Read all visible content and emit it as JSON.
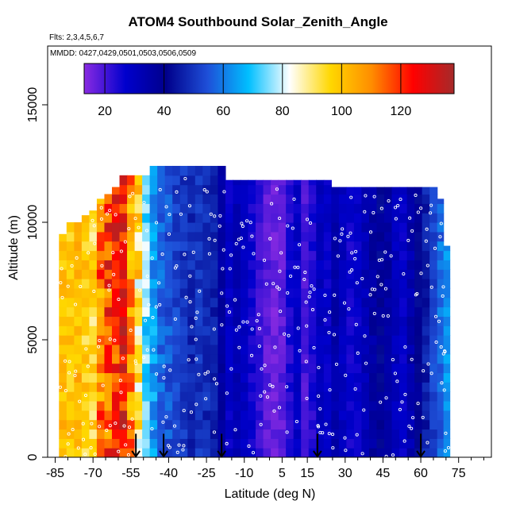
{
  "chart_data": {
    "type": "heatmap",
    "title": "ATOM4 Southbound Solar_Zenith_Angle",
    "flights_label": "Flts: 2,3,4,5,6,7",
    "dates_label": "MMDD: 0427,0429,0501,0503,0506,0509",
    "xlabel": "Latitude (deg N)",
    "ylabel": "Altitude (m)",
    "xlim": [
      -88,
      88
    ],
    "ylim": [
      0,
      17500
    ],
    "x_ticks": [
      -85,
      -70,
      -55,
      -40,
      -25,
      -10,
      5,
      15,
      30,
      45,
      60,
      75
    ],
    "x_tick_labels": [
      "-85",
      "-70",
      "-55",
      "-40",
      "-25",
      "-10",
      "5",
      "15",
      "30",
      "45",
      "60",
      "75"
    ],
    "y_ticks": [
      0,
      5000,
      10000,
      15000
    ],
    "y_tick_labels": [
      "0",
      "5000",
      "10000",
      "15000"
    ],
    "colorbar": {
      "range": [
        13,
        138
      ],
      "ticks": [
        20,
        40,
        60,
        80,
        100,
        120
      ],
      "tick_labels": [
        "20",
        "40",
        "60",
        "80",
        "100",
        "120"
      ]
    },
    "columns": [
      {
        "lat": -82,
        "top": 9500,
        "value": 100,
        "jitter": 6
      },
      {
        "lat": -79,
        "top": 10000,
        "value": 98,
        "jitter": 6
      },
      {
        "lat": -76,
        "top": 10000,
        "value": 102,
        "jitter": 6
      },
      {
        "lat": -73,
        "top": 10300,
        "value": 97,
        "jitter": 7
      },
      {
        "lat": -70,
        "top": 10500,
        "value": 95,
        "jitter": 8
      },
      {
        "lat": -67,
        "top": 11000,
        "value": 110,
        "jitter": 16
      },
      {
        "lat": -64,
        "top": 11200,
        "value": 118,
        "jitter": 16
      },
      {
        "lat": -61,
        "top": 11500,
        "value": 122,
        "jitter": 14
      },
      {
        "lat": -58,
        "top": 12000,
        "value": 125,
        "jitter": 12
      },
      {
        "lat": -55,
        "top": 12000,
        "value": 108,
        "jitter": 14
      },
      {
        "lat": -52,
        "top": 12000,
        "value": 92,
        "jitter": 14
      },
      {
        "lat": -49,
        "top": 12000,
        "value": 74,
        "jitter": 8
      },
      {
        "lat": -46,
        "top": 12400,
        "value": 64,
        "jitter": 6
      },
      {
        "lat": -43,
        "top": 12400,
        "value": 58,
        "jitter": 5
      },
      {
        "lat": -40,
        "top": 12400,
        "value": 55,
        "jitter": 5
      },
      {
        "lat": -37,
        "top": 12400,
        "value": 52,
        "jitter": 4
      },
      {
        "lat": -34,
        "top": 12400,
        "value": 50,
        "jitter": 4
      },
      {
        "lat": -31,
        "top": 12400,
        "value": 48,
        "jitter": 4
      },
      {
        "lat": -28,
        "top": 12400,
        "value": 50,
        "jitter": 4
      },
      {
        "lat": -25,
        "top": 12400,
        "value": 48,
        "jitter": 4
      },
      {
        "lat": -22,
        "top": 12400,
        "value": 46,
        "jitter": 3
      },
      {
        "lat": -19,
        "top": 12400,
        "value": 36,
        "jitter": 3
      },
      {
        "lat": -16,
        "top": 11800,
        "value": 28,
        "jitter": 3
      },
      {
        "lat": -13,
        "top": 11800,
        "value": 32,
        "jitter": 3
      },
      {
        "lat": -10,
        "top": 11800,
        "value": 30,
        "jitter": 3
      },
      {
        "lat": -7,
        "top": 11800,
        "value": 26,
        "jitter": 3
      },
      {
        "lat": -4,
        "top": 11800,
        "value": 22,
        "jitter": 3
      },
      {
        "lat": -1,
        "top": 11800,
        "value": 18,
        "jitter": 3
      },
      {
        "lat": 2,
        "top": 11800,
        "value": 16,
        "jitter": 3
      },
      {
        "lat": 5,
        "top": 11800,
        "value": 18,
        "jitter": 3
      },
      {
        "lat": 8,
        "top": 11800,
        "value": 24,
        "jitter": 3
      },
      {
        "lat": 11,
        "top": 11800,
        "value": 28,
        "jitter": 3
      },
      {
        "lat": 14,
        "top": 11800,
        "value": 20,
        "jitter": 3
      },
      {
        "lat": 17,
        "top": 11800,
        "value": 24,
        "jitter": 3
      },
      {
        "lat": 20,
        "top": 11800,
        "value": 30,
        "jitter": 3
      },
      {
        "lat": 23,
        "top": 11800,
        "value": 28,
        "jitter": 3
      },
      {
        "lat": 26,
        "top": 11500,
        "value": 34,
        "jitter": 3
      },
      {
        "lat": 29,
        "top": 11500,
        "value": 30,
        "jitter": 3
      },
      {
        "lat": 32,
        "top": 11500,
        "value": 26,
        "jitter": 3
      },
      {
        "lat": 35,
        "top": 11500,
        "value": 28,
        "jitter": 3
      },
      {
        "lat": 38,
        "top": 11500,
        "value": 32,
        "jitter": 3
      },
      {
        "lat": 41,
        "top": 11500,
        "value": 36,
        "jitter": 4
      },
      {
        "lat": 44,
        "top": 11500,
        "value": 40,
        "jitter": 4
      },
      {
        "lat": 47,
        "top": 11500,
        "value": 36,
        "jitter": 3
      },
      {
        "lat": 50,
        "top": 11500,
        "value": 30,
        "jitter": 3
      },
      {
        "lat": 53,
        "top": 11500,
        "value": 28,
        "jitter": 3
      },
      {
        "lat": 56,
        "top": 11500,
        "value": 34,
        "jitter": 4
      },
      {
        "lat": 59,
        "top": 11500,
        "value": 40,
        "jitter": 4
      },
      {
        "lat": 62,
        "top": 11500,
        "value": 46,
        "jitter": 4
      },
      {
        "lat": 65,
        "top": 11500,
        "value": 52,
        "jitter": 4
      },
      {
        "lat": 68,
        "top": 11000,
        "value": 58,
        "jitter": 5
      },
      {
        "lat": 70,
        "top": 9000,
        "value": 63,
        "jitter": 4
      }
    ],
    "arrows_lat": [
      -53,
      -42,
      -19,
      19,
      60
    ],
    "colors": {
      "colorbar_stops": [
        "#8a2be2",
        "#0000cd",
        "#00008b",
        "#1e4fd8",
        "#00bfff",
        "#ffffff",
        "#ffd700",
        "#ff8c00",
        "#ff0000",
        "#a52a2a"
      ],
      "point_color": "#ffffff",
      "arrow_color": "#000000"
    }
  }
}
